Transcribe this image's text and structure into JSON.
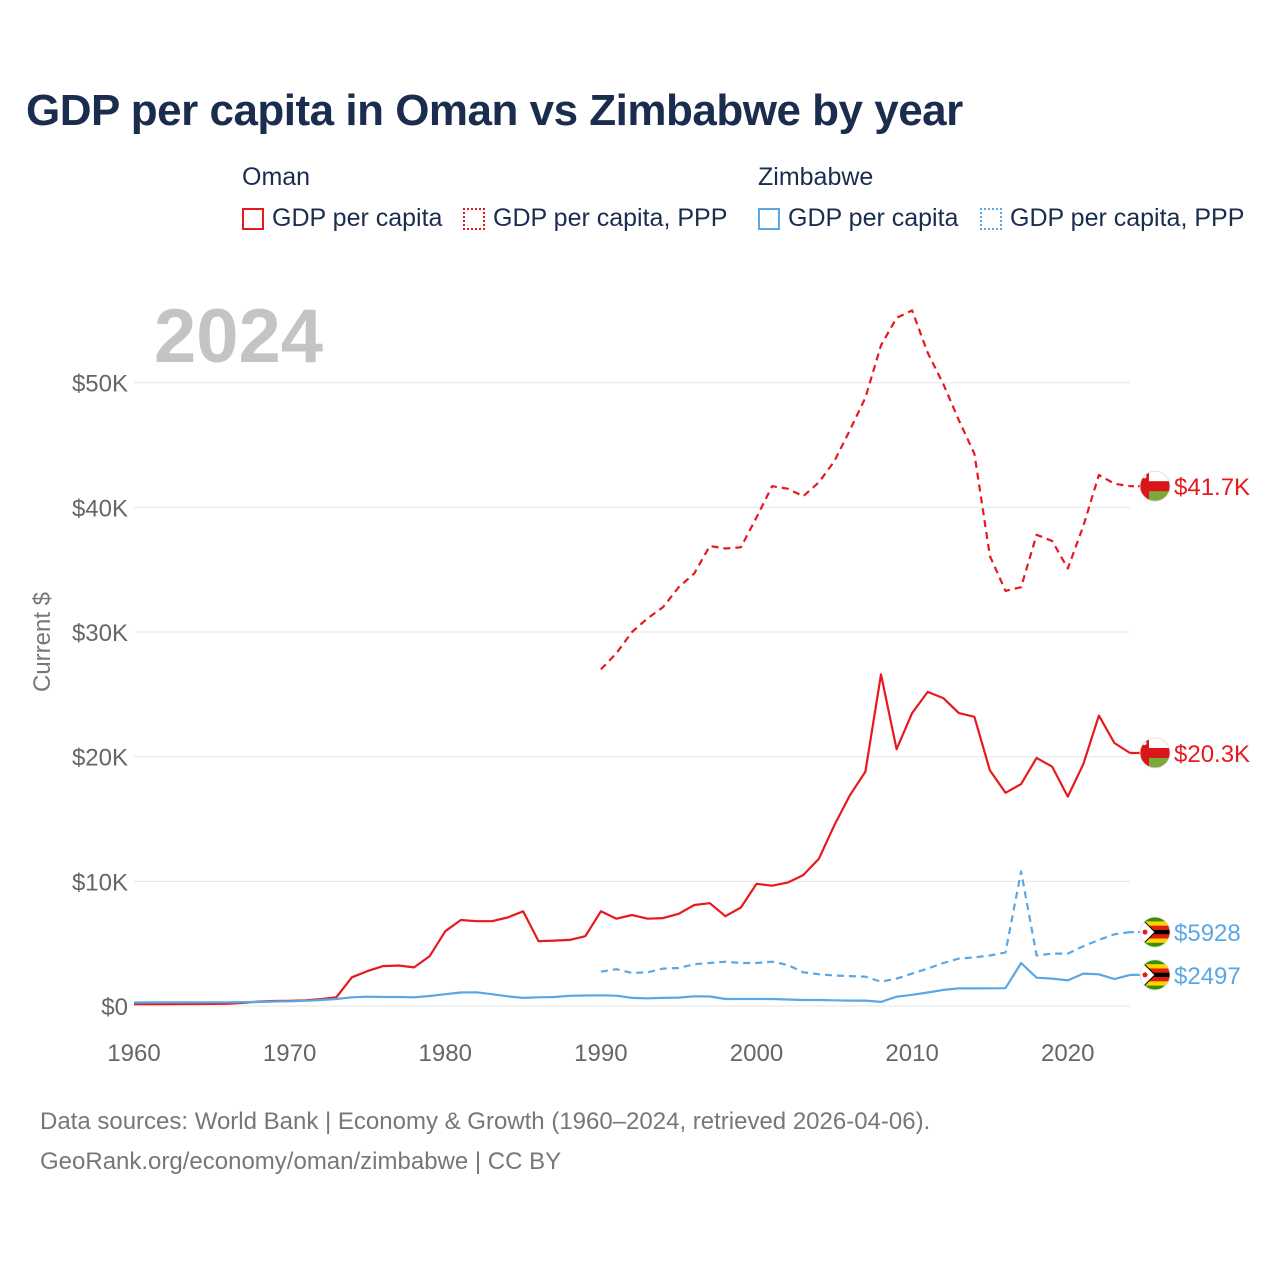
{
  "title": "GDP per capita in Oman vs Zimbabwe by year",
  "legend": {
    "groups": [
      {
        "name": "Oman",
        "items": [
          {
            "label": "GDP per capita",
            "style": "solid",
            "color": "#e8191c"
          },
          {
            "label": "GDP per capita, PPP",
            "style": "dotted",
            "color": "#e8191c"
          }
        ]
      },
      {
        "name": "Zimbabwe",
        "items": [
          {
            "label": "GDP per capita",
            "style": "solid",
            "color": "#5aa7e6"
          },
          {
            "label": "GDP per capita, PPP",
            "style": "dotted",
            "color": "#5aa7e6"
          }
        ]
      }
    ]
  },
  "footer": {
    "line1": "Data sources: World Bank | Economy & Growth (1960–2024, retrieved 2026-04-06).",
    "line2": "GeoRank.org/economy/oman/zimbabwe | CC BY"
  },
  "chart_data": {
    "type": "line",
    "title": "GDP per capita in Oman vs Zimbabwe by year",
    "year_label": "2024",
    "ylabel": "Current $",
    "xlabel": "",
    "xlim": [
      1960,
      2024
    ],
    "ylim": [
      0,
      58000
    ],
    "x_ticks": [
      1960,
      1970,
      1980,
      1990,
      2000,
      2010,
      2020
    ],
    "x_tick_labels": [
      "1960",
      "1970",
      "1980",
      "1990",
      "2000",
      "2010",
      "2020"
    ],
    "y_ticks": [
      0,
      10000,
      20000,
      30000,
      40000,
      50000
    ],
    "y_tick_labels": [
      "$0",
      "$10K",
      "$20K",
      "$30K",
      "$40K",
      "$50K"
    ],
    "series": [
      {
        "name": "Oman GDP per capita",
        "color": "#e8191c",
        "dash": "solid",
        "end_label": "$20.3K",
        "flag": "oman",
        "points": [
          [
            1960,
            150
          ],
          [
            1961,
            150
          ],
          [
            1962,
            155
          ],
          [
            1963,
            160
          ],
          [
            1964,
            160
          ],
          [
            1965,
            165
          ],
          [
            1966,
            180
          ],
          [
            1967,
            250
          ],
          [
            1968,
            350
          ],
          [
            1969,
            400
          ],
          [
            1970,
            420
          ],
          [
            1971,
            450
          ],
          [
            1972,
            550
          ],
          [
            1973,
            700
          ],
          [
            1974,
            2300
          ],
          [
            1975,
            2800
          ],
          [
            1976,
            3200
          ],
          [
            1977,
            3250
          ],
          [
            1978,
            3100
          ],
          [
            1979,
            4000
          ],
          [
            1980,
            6000
          ],
          [
            1981,
            6900
          ],
          [
            1982,
            6800
          ],
          [
            1983,
            6800
          ],
          [
            1984,
            7100
          ],
          [
            1985,
            7600
          ],
          [
            1986,
            5200
          ],
          [
            1987,
            5250
          ],
          [
            1988,
            5300
          ],
          [
            1989,
            5600
          ],
          [
            1990,
            7600
          ],
          [
            1991,
            7000
          ],
          [
            1992,
            7300
          ],
          [
            1993,
            7000
          ],
          [
            1994,
            7050
          ],
          [
            1995,
            7400
          ],
          [
            1996,
            8100
          ],
          [
            1997,
            8250
          ],
          [
            1998,
            7200
          ],
          [
            1999,
            7900
          ],
          [
            2000,
            9800
          ],
          [
            2001,
            9650
          ],
          [
            2002,
            9900
          ],
          [
            2003,
            10500
          ],
          [
            2004,
            11800
          ],
          [
            2005,
            14500
          ],
          [
            2006,
            16900
          ],
          [
            2007,
            18800
          ],
          [
            2008,
            26600
          ],
          [
            2009,
            20600
          ],
          [
            2010,
            23500
          ],
          [
            2011,
            25200
          ],
          [
            2012,
            24700
          ],
          [
            2013,
            23500
          ],
          [
            2014,
            23200
          ],
          [
            2015,
            18900
          ],
          [
            2016,
            17100
          ],
          [
            2017,
            17800
          ],
          [
            2018,
            19900
          ],
          [
            2019,
            19200
          ],
          [
            2020,
            16800
          ],
          [
            2021,
            19400
          ],
          [
            2022,
            23300
          ],
          [
            2023,
            21100
          ],
          [
            2024,
            20300
          ]
        ]
      },
      {
        "name": "Oman GDP per capita, PPP",
        "color": "#e8191c",
        "dash": "dashed",
        "end_label": "$41.7K",
        "flag": "oman",
        "points": [
          [
            1990,
            27000
          ],
          [
            1991,
            28300
          ],
          [
            1992,
            30000
          ],
          [
            1993,
            31100
          ],
          [
            1994,
            32000
          ],
          [
            1995,
            33600
          ],
          [
            1996,
            34700
          ],
          [
            1997,
            36900
          ],
          [
            1998,
            36700
          ],
          [
            1999,
            36800
          ],
          [
            2000,
            39200
          ],
          [
            2001,
            41700
          ],
          [
            2002,
            41500
          ],
          [
            2003,
            40900
          ],
          [
            2004,
            42000
          ],
          [
            2005,
            43700
          ],
          [
            2006,
            46200
          ],
          [
            2007,
            48800
          ],
          [
            2008,
            53000
          ],
          [
            2009,
            55200
          ],
          [
            2010,
            55800
          ],
          [
            2011,
            52400
          ],
          [
            2012,
            49900
          ],
          [
            2013,
            47000
          ],
          [
            2014,
            44300
          ],
          [
            2015,
            36100
          ],
          [
            2016,
            33300
          ],
          [
            2017,
            33600
          ],
          [
            2018,
            37800
          ],
          [
            2019,
            37300
          ],
          [
            2020,
            35100
          ],
          [
            2021,
            38500
          ],
          [
            2022,
            42600
          ],
          [
            2023,
            41900
          ],
          [
            2024,
            41700
          ]
        ]
      },
      {
        "name": "Zimbabwe GDP per capita",
        "color": "#5aa7e6",
        "dash": "solid",
        "end_label": "$2497",
        "flag": "zimbabwe",
        "points": [
          [
            1960,
            280
          ],
          [
            1961,
            290
          ],
          [
            1962,
            290
          ],
          [
            1963,
            290
          ],
          [
            1964,
            290
          ],
          [
            1965,
            300
          ],
          [
            1966,
            300
          ],
          [
            1967,
            310
          ],
          [
            1968,
            320
          ],
          [
            1969,
            360
          ],
          [
            1970,
            380
          ],
          [
            1971,
            420
          ],
          [
            1972,
            480
          ],
          [
            1973,
            560
          ],
          [
            1974,
            700
          ],
          [
            1975,
            750
          ],
          [
            1976,
            720
          ],
          [
            1977,
            720
          ],
          [
            1978,
            700
          ],
          [
            1979,
            800
          ],
          [
            1980,
            950
          ],
          [
            1981,
            1080
          ],
          [
            1982,
            1100
          ],
          [
            1983,
            950
          ],
          [
            1984,
            780
          ],
          [
            1985,
            650
          ],
          [
            1986,
            700
          ],
          [
            1987,
            720
          ],
          [
            1988,
            820
          ],
          [
            1989,
            840
          ],
          [
            1990,
            860
          ],
          [
            1991,
            830
          ],
          [
            1992,
            650
          ],
          [
            1993,
            620
          ],
          [
            1994,
            650
          ],
          [
            1995,
            670
          ],
          [
            1996,
            780
          ],
          [
            1997,
            760
          ],
          [
            1998,
            560
          ],
          [
            1999,
            560
          ],
          [
            2000,
            560
          ],
          [
            2001,
            560
          ],
          [
            2002,
            520
          ],
          [
            2003,
            480
          ],
          [
            2004,
            480
          ],
          [
            2005,
            460
          ],
          [
            2006,
            430
          ],
          [
            2007,
            430
          ],
          [
            2008,
            330
          ],
          [
            2009,
            750
          ],
          [
            2010,
            900
          ],
          [
            2011,
            1080
          ],
          [
            2012,
            1290
          ],
          [
            2013,
            1410
          ],
          [
            2014,
            1410
          ],
          [
            2015,
            1420
          ],
          [
            2016,
            1430
          ],
          [
            2017,
            3450
          ],
          [
            2018,
            2270
          ],
          [
            2019,
            2200
          ],
          [
            2020,
            2050
          ],
          [
            2021,
            2600
          ],
          [
            2022,
            2540
          ],
          [
            2023,
            2160
          ],
          [
            2024,
            2497
          ]
        ]
      },
      {
        "name": "Zimbabwe GDP per capita, PPP",
        "color": "#5aa7e6",
        "dash": "dashed",
        "end_label": "$5928",
        "flag": "zimbabwe",
        "points": [
          [
            1990,
            2750
          ],
          [
            1991,
            2950
          ],
          [
            1992,
            2650
          ],
          [
            1993,
            2700
          ],
          [
            1994,
            3000
          ],
          [
            1995,
            3050
          ],
          [
            1996,
            3350
          ],
          [
            1997,
            3450
          ],
          [
            1998,
            3550
          ],
          [
            1999,
            3450
          ],
          [
            2000,
            3450
          ],
          [
            2001,
            3550
          ],
          [
            2002,
            3300
          ],
          [
            2003,
            2700
          ],
          [
            2004,
            2550
          ],
          [
            2005,
            2450
          ],
          [
            2006,
            2400
          ],
          [
            2007,
            2350
          ],
          [
            2008,
            1950
          ],
          [
            2009,
            2200
          ],
          [
            2010,
            2600
          ],
          [
            2011,
            3000
          ],
          [
            2012,
            3450
          ],
          [
            2013,
            3800
          ],
          [
            2014,
            3900
          ],
          [
            2015,
            4050
          ],
          [
            2016,
            4300
          ],
          [
            2017,
            10800
          ],
          [
            2018,
            4050
          ],
          [
            2019,
            4200
          ],
          [
            2020,
            4200
          ],
          [
            2021,
            4800
          ],
          [
            2022,
            5300
          ],
          [
            2023,
            5750
          ],
          [
            2024,
            5928
          ]
        ]
      }
    ]
  }
}
